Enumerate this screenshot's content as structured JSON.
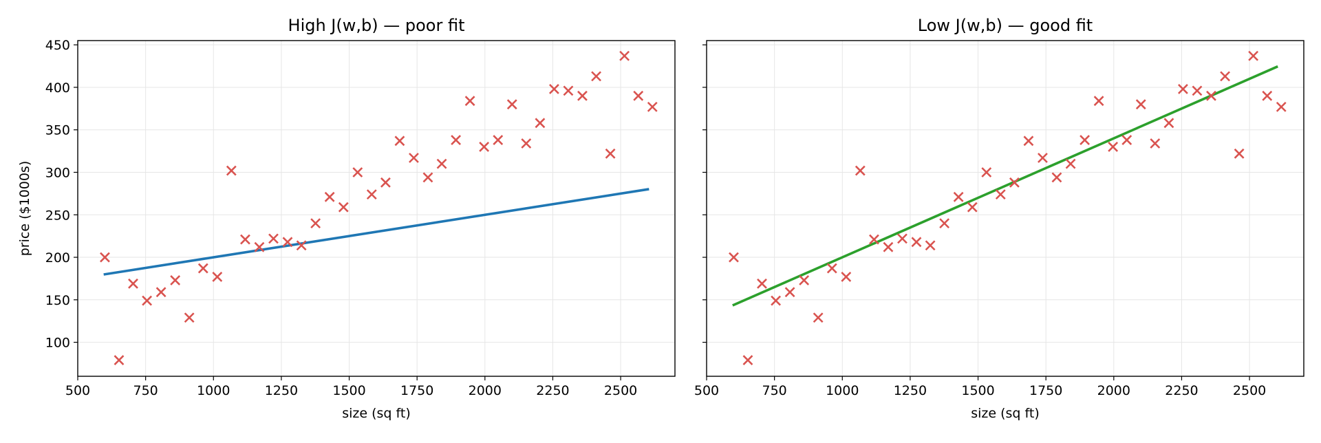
{
  "chart_data": [
    {
      "type": "scatter",
      "title": "High J(w,b) — poor fit",
      "xlabel": "size (sq ft)",
      "ylabel": "price ($1000s)",
      "xlim": [
        500,
        2700
      ],
      "ylim": [
        60,
        455
      ],
      "xticks": [
        500,
        750,
        1000,
        1250,
        1500,
        1750,
        2000,
        2250,
        2500
      ],
      "yticks": [
        100,
        150,
        200,
        250,
        300,
        350,
        400,
        450
      ],
      "grid": true,
      "points": {
        "marker": "x",
        "color": "#d9534f",
        "x": [
          600,
          652,
          704,
          755,
          807,
          859,
          911,
          962,
          1014,
          1066,
          1117,
          1169,
          1221,
          1273,
          1324,
          1376,
          1428,
          1479,
          1531,
          1583,
          1634,
          1686,
          1738,
          1790,
          1841,
          1893,
          1945,
          1997,
          2048,
          2100,
          2152,
          2203,
          2255,
          2307,
          2359,
          2410,
          2462,
          2514,
          2565,
          2617
        ],
        "y": [
          200,
          79,
          169,
          149,
          159,
          173,
          129,
          187,
          177,
          302,
          221,
          212,
          222,
          218,
          214,
          240,
          271,
          259,
          300,
          274,
          288,
          337,
          317,
          294,
          310,
          338,
          384,
          330,
          338,
          380,
          334,
          358,
          398,
          396,
          390,
          413,
          322,
          437,
          390,
          377
        ]
      },
      "line": {
        "color": "#1f77b4",
        "x": [
          600,
          2600
        ],
        "y": [
          180,
          280
        ]
      }
    },
    {
      "type": "scatter",
      "title": "Low J(w,b) — good fit",
      "xlabel": "size (sq ft)",
      "ylabel": "",
      "xlim": [
        500,
        2700
      ],
      "ylim": [
        60,
        455
      ],
      "xticks": [
        500,
        750,
        1000,
        1250,
        1500,
        1750,
        2000,
        2250,
        2500
      ],
      "yticks": [
        100,
        150,
        200,
        250,
        300,
        350,
        400,
        450
      ],
      "shared_y": true,
      "grid": true,
      "points": {
        "marker": "x",
        "color": "#d9534f",
        "x": [
          600,
          652,
          704,
          755,
          807,
          859,
          911,
          962,
          1014,
          1066,
          1117,
          1169,
          1221,
          1273,
          1324,
          1376,
          1428,
          1479,
          1531,
          1583,
          1634,
          1686,
          1738,
          1790,
          1841,
          1893,
          1945,
          1997,
          2048,
          2100,
          2152,
          2203,
          2255,
          2307,
          2359,
          2410,
          2462,
          2514,
          2565,
          2617
        ],
        "y": [
          200,
          79,
          169,
          149,
          159,
          173,
          129,
          187,
          177,
          302,
          221,
          212,
          222,
          218,
          214,
          240,
          271,
          259,
          300,
          274,
          288,
          337,
          317,
          294,
          310,
          338,
          384,
          330,
          338,
          380,
          334,
          358,
          398,
          396,
          390,
          413,
          322,
          437,
          390,
          377
        ]
      },
      "line": {
        "color": "#2ca02c",
        "x": [
          600,
          2600
        ],
        "y": [
          144,
          424
        ]
      }
    }
  ]
}
